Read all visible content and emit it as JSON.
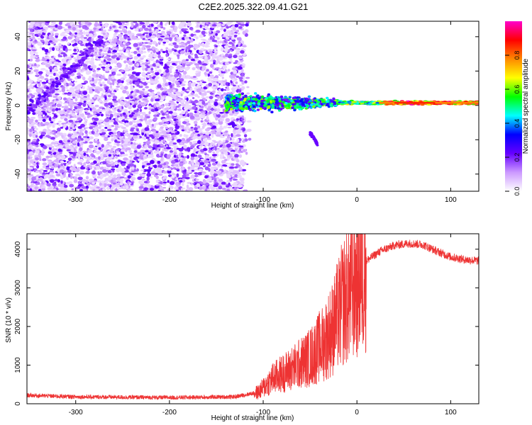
{
  "title": "C2E2.2025.322.09.41.G21",
  "chart_data": [
    {
      "type": "heatmap",
      "name": "spectrogram",
      "xlabel": "Height of straight line (km)",
      "ylabel": "Frequency (Hz)",
      "xlim": [
        -352,
        130
      ],
      "ylim": [
        -50,
        49
      ],
      "xticks": [
        -300,
        -200,
        -100,
        0,
        100
      ],
      "yticks": [
        -40,
        -20,
        0,
        20,
        40
      ],
      "xtick_labels": [
        "-300",
        "-200",
        "-100",
        "0",
        "100"
      ],
      "ytick_labels": [
        "-40",
        "-20",
        "0",
        "20",
        "40"
      ],
      "noise_region_end_km": -120,
      "signal_band_center_hz": 1.5,
      "colorbar": {
        "label": "Normalized spectral amplitude",
        "range": [
          0,
          1
        ],
        "ticks": [
          0.0,
          0.2,
          0.4,
          0.6,
          0.8
        ],
        "tick_labels": [
          "0.0",
          "0.2",
          "0.4",
          "0.6",
          "0.8"
        ],
        "colors": [
          "#ffffff",
          "#cc99ff",
          "#6600ff",
          "#0000ff",
          "#00ffff",
          "#00ff00",
          "#ffff00",
          "#ff8800",
          "#ff0000",
          "#ff00cc"
        ]
      }
    },
    {
      "type": "line",
      "name": "snr",
      "xlabel": "Height of straight line (km)",
      "ylabel": "SNR (10 * v/v)",
      "xlim": [
        -352,
        130
      ],
      "ylim": [
        0,
        4400
      ],
      "xticks": [
        -300,
        -200,
        -100,
        0,
        100
      ],
      "yticks": [
        0,
        1000,
        2000,
        3000,
        4000
      ],
      "xtick_labels": [
        "-300",
        "-200",
        "-100",
        "0",
        "100"
      ],
      "ytick_labels": [
        "0",
        "1000",
        "2000",
        "3000",
        "4000"
      ],
      "color": "#ee3333",
      "trend_x": [
        -352,
        -300,
        -200,
        -130,
        -105,
        -90,
        -70,
        -50,
        -35,
        -25,
        -15,
        -8,
        0,
        10,
        25,
        40,
        55,
        70,
        85,
        100,
        115,
        130
      ],
      "trend_y": [
        220,
        180,
        160,
        180,
        300,
        650,
        900,
        1200,
        1600,
        2000,
        2600,
        2900,
        3200,
        3700,
        3950,
        4100,
        4150,
        4120,
        3950,
        3800,
        3730,
        3700
      ]
    }
  ]
}
